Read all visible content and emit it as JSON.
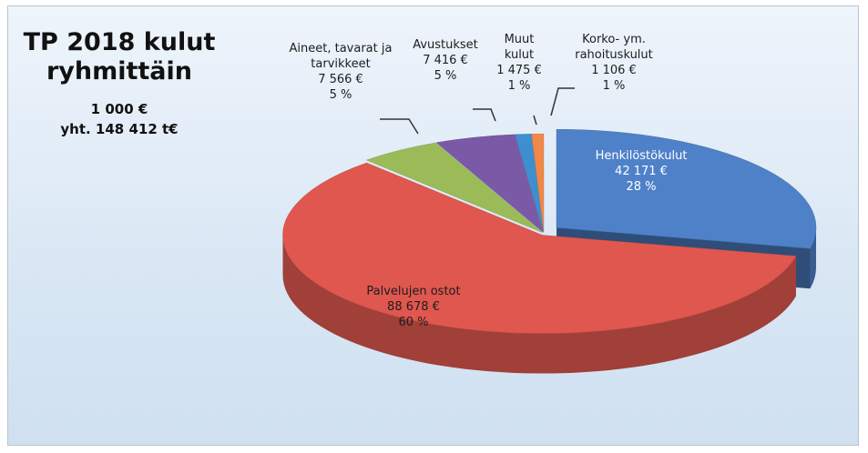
{
  "chart_data": {
    "type": "pie",
    "title": "TP 2018 kulut ryhmittäin",
    "unit": "1 000 €",
    "total": "yht. 148 412 t€",
    "categories": [
      "Henkilöstökulut",
      "Palvelujen ostot",
      "Aineet, tavarat ja tarvikkeet",
      "Avustukset",
      "Muut kulut",
      "Korko- ym. rahoituskulut"
    ],
    "values": [
      42171,
      88678,
      7566,
      7416,
      1475,
      1106
    ],
    "value_labels": [
      "42 171 €",
      "88 678 €",
      "7 566 €",
      "7 416 €",
      "1 475 €",
      "1 106 €"
    ],
    "share_labels": [
      "28 %",
      "60 %",
      "5 %",
      "5 %",
      "1 %",
      "1 %"
    ],
    "colors": [
      "#4f81c9",
      "#e0574f",
      "#9bbb59",
      "#7a5aa6",
      "#3e8fd0",
      "#f08848"
    ],
    "exploded": [
      0
    ]
  }
}
